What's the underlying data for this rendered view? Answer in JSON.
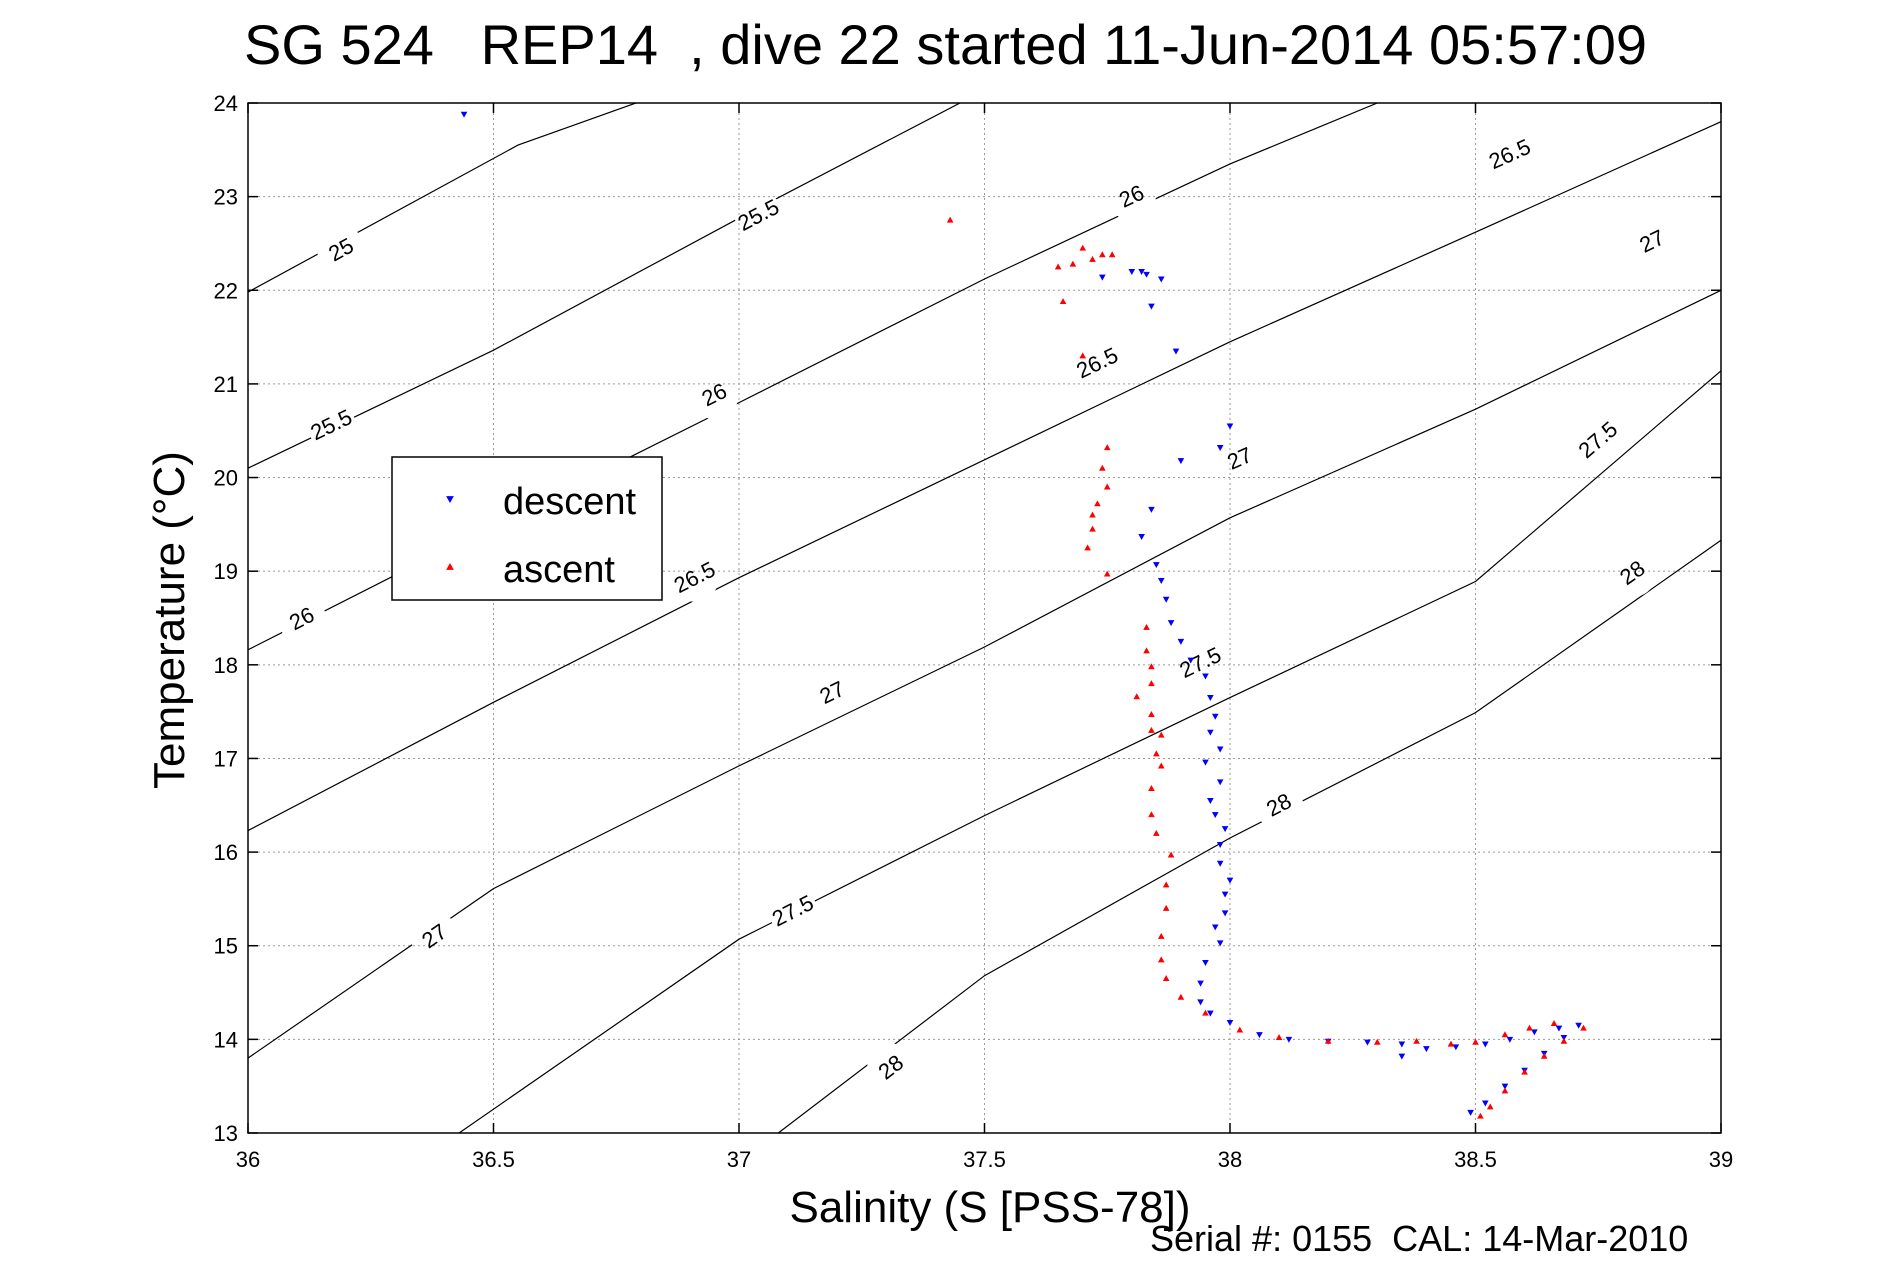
{
  "chart_data": {
    "type": "scatter",
    "title": "SG 524   REP14  , dive 22 started 11-Jun-2014 05:57:09",
    "xlabel": "Salinity (S [PSS-78])",
    "ylabel": "Temperature (°C)",
    "footer": "Serial #: 0155  CAL: 14-Mar-2010",
    "xlim": [
      36,
      39
    ],
    "ylim": [
      13,
      24
    ],
    "x_ticks": [
      "36",
      "36.5",
      "37",
      "37.5",
      "38",
      "38.5",
      "39"
    ],
    "y_ticks": [
      "13",
      "14",
      "15",
      "16",
      "17",
      "18",
      "19",
      "20",
      "21",
      "22",
      "23",
      "24"
    ],
    "grid": true,
    "legend_position": "upper-left",
    "density_contours": [
      {
        "value": "25",
        "points": [
          [
            36,
            21.98
          ],
          [
            36.55,
            23.55
          ],
          [
            36.79,
            24
          ]
        ],
        "labels": [
          [
            36.19,
            22.43
          ]
        ]
      },
      {
        "value": "25.5",
        "points": [
          [
            36,
            20.1
          ],
          [
            36.5,
            21.36
          ],
          [
            37.0,
            22.77
          ],
          [
            37.45,
            24
          ]
        ],
        "labels": [
          [
            36.17,
            20.56
          ],
          [
            37.04,
            22.8
          ]
        ]
      },
      {
        "value": "26",
        "points": [
          [
            36,
            18.16
          ],
          [
            36.5,
            19.49
          ],
          [
            37.0,
            20.8
          ],
          [
            37.5,
            22.12
          ],
          [
            38.0,
            23.35
          ],
          [
            38.3,
            24
          ]
        ],
        "labels": [
          [
            36.11,
            18.49
          ],
          [
            36.95,
            20.88
          ],
          [
            37.8,
            23.0
          ]
        ]
      },
      {
        "value": "26.5",
        "points": [
          [
            36,
            16.23
          ],
          [
            36.5,
            17.6
          ],
          [
            37.0,
            18.93
          ],
          [
            37.5,
            20.19
          ],
          [
            38.0,
            21.45
          ],
          [
            38.5,
            22.62
          ],
          [
            39.0,
            23.8
          ]
        ],
        "labels": [
          [
            36.91,
            18.93
          ],
          [
            37.73,
            21.22
          ],
          [
            38.57,
            23.45
          ]
        ]
      },
      {
        "value": "27",
        "points": [
          [
            36,
            13.8
          ],
          [
            36.5,
            15.61
          ],
          [
            37.0,
            16.92
          ],
          [
            37.5,
            18.19
          ],
          [
            38.0,
            19.57
          ],
          [
            38.5,
            20.73
          ],
          [
            39.0,
            22.0
          ]
        ],
        "labels": [
          [
            36.38,
            15.1
          ],
          [
            37.19,
            17.7
          ],
          [
            38.02,
            20.2
          ],
          [
            38.86,
            22.52
          ]
        ]
      },
      {
        "value": "27.5",
        "points": [
          [
            36.43,
            13.0
          ],
          [
            37.0,
            15.07
          ],
          [
            37.5,
            16.39
          ],
          [
            38.0,
            17.65
          ],
          [
            38.5,
            18.89
          ],
          [
            39.0,
            21.14
          ]
        ],
        "labels": [
          [
            37.11,
            15.37
          ],
          [
            37.94,
            18.02
          ],
          [
            38.75,
            20.4
          ]
        ]
      },
      {
        "value": "28",
        "points": [
          [
            37.08,
            13.0
          ],
          [
            37.5,
            14.68
          ],
          [
            38.0,
            16.15
          ],
          [
            38.5,
            17.49
          ],
          [
            39.0,
            19.33
          ]
        ],
        "labels": [
          [
            37.31,
            13.7
          ],
          [
            38.1,
            16.5
          ],
          [
            38.82,
            18.98
          ]
        ]
      }
    ],
    "series": [
      {
        "name": "descent",
        "color": "#0000ff",
        "marker": "triangle-down",
        "points": [
          [
            36.44,
            23.88
          ],
          [
            37.74,
            22.14
          ],
          [
            37.8,
            22.2
          ],
          [
            37.82,
            22.2
          ],
          [
            37.83,
            22.17
          ],
          [
            37.86,
            22.12
          ],
          [
            37.84,
            21.83
          ],
          [
            37.89,
            21.35
          ],
          [
            37.98,
            20.32
          ],
          [
            38.0,
            20.55
          ],
          [
            37.9,
            20.18
          ],
          [
            37.84,
            19.66
          ],
          [
            37.82,
            19.37
          ],
          [
            37.85,
            19.07
          ],
          [
            37.86,
            18.9
          ],
          [
            37.87,
            18.7
          ],
          [
            37.88,
            18.45
          ],
          [
            37.9,
            18.25
          ],
          [
            37.92,
            18.05
          ],
          [
            37.95,
            17.88
          ],
          [
            37.96,
            17.65
          ],
          [
            37.97,
            17.45
          ],
          [
            37.96,
            17.28
          ],
          [
            37.98,
            17.1
          ],
          [
            37.95,
            16.96
          ],
          [
            37.98,
            16.75
          ],
          [
            37.96,
            16.55
          ],
          [
            37.97,
            16.4
          ],
          [
            37.99,
            16.25
          ],
          [
            37.98,
            16.08
          ],
          [
            37.98,
            15.88
          ],
          [
            38.0,
            15.7
          ],
          [
            37.99,
            15.55
          ],
          [
            37.99,
            15.35
          ],
          [
            37.97,
            15.2
          ],
          [
            37.98,
            15.03
          ],
          [
            37.95,
            14.82
          ],
          [
            37.94,
            14.6
          ],
          [
            37.94,
            14.4
          ],
          [
            37.96,
            14.28
          ],
          [
            38.0,
            14.18
          ],
          [
            38.06,
            14.05
          ],
          [
            38.12,
            14.0
          ],
          [
            38.2,
            13.98
          ],
          [
            38.28,
            13.97
          ],
          [
            38.35,
            13.95
          ],
          [
            38.35,
            13.82
          ],
          [
            38.4,
            13.9
          ],
          [
            38.46,
            13.92
          ],
          [
            38.52,
            13.95
          ],
          [
            38.57,
            14.0
          ],
          [
            38.62,
            14.08
          ],
          [
            38.67,
            14.12
          ],
          [
            38.71,
            14.15
          ],
          [
            38.68,
            14.02
          ],
          [
            38.64,
            13.85
          ],
          [
            38.6,
            13.67
          ],
          [
            38.56,
            13.5
          ],
          [
            38.52,
            13.32
          ],
          [
            38.49,
            13.22
          ]
        ]
      },
      {
        "name": "ascent",
        "color": "#ff0000",
        "marker": "triangle-up",
        "points": [
          [
            37.43,
            22.75
          ],
          [
            37.65,
            22.25
          ],
          [
            37.68,
            22.28
          ],
          [
            37.7,
            22.45
          ],
          [
            37.72,
            22.33
          ],
          [
            37.74,
            22.38
          ],
          [
            37.76,
            22.38
          ],
          [
            37.66,
            21.88
          ],
          [
            37.7,
            21.3
          ],
          [
            37.75,
            20.32
          ],
          [
            37.74,
            20.1
          ],
          [
            37.75,
            19.9
          ],
          [
            37.73,
            19.72
          ],
          [
            37.72,
            19.6
          ],
          [
            37.72,
            19.45
          ],
          [
            37.71,
            19.25
          ],
          [
            37.75,
            18.97
          ],
          [
            37.83,
            18.4
          ],
          [
            37.83,
            18.15
          ],
          [
            37.84,
            17.98
          ],
          [
            37.84,
            17.8
          ],
          [
            37.81,
            17.66
          ],
          [
            37.84,
            17.47
          ],
          [
            37.84,
            17.3
          ],
          [
            37.86,
            17.25
          ],
          [
            37.85,
            17.05
          ],
          [
            37.86,
            16.92
          ],
          [
            37.84,
            16.68
          ],
          [
            37.84,
            16.4
          ],
          [
            37.85,
            16.2
          ],
          [
            37.88,
            15.97
          ],
          [
            37.87,
            15.65
          ],
          [
            37.87,
            15.4
          ],
          [
            37.86,
            15.1
          ],
          [
            37.86,
            14.85
          ],
          [
            37.87,
            14.65
          ],
          [
            37.9,
            14.45
          ],
          [
            37.95,
            14.28
          ],
          [
            38.02,
            14.1
          ],
          [
            38.1,
            14.02
          ],
          [
            38.2,
            13.98
          ],
          [
            38.3,
            13.97
          ],
          [
            38.38,
            13.98
          ],
          [
            38.45,
            13.95
          ],
          [
            38.5,
            13.97
          ],
          [
            38.56,
            14.05
          ],
          [
            38.61,
            14.12
          ],
          [
            38.66,
            14.17
          ],
          [
            38.72,
            14.12
          ],
          [
            38.68,
            13.98
          ],
          [
            38.64,
            13.82
          ],
          [
            38.6,
            13.65
          ],
          [
            38.56,
            13.45
          ],
          [
            38.53,
            13.28
          ],
          [
            38.51,
            13.18
          ]
        ]
      }
    ]
  }
}
